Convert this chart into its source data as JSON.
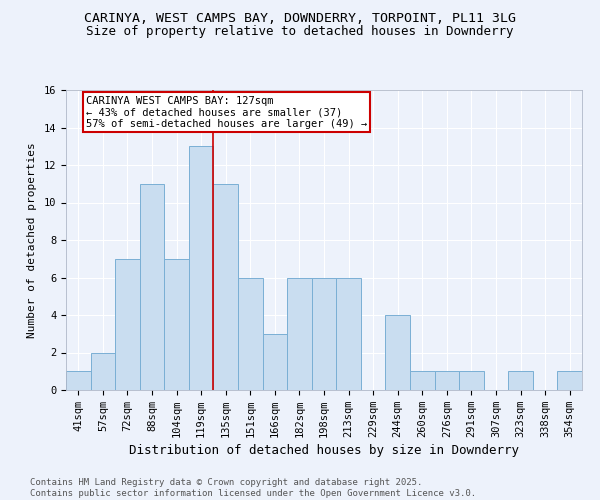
{
  "title": "CARINYA, WEST CAMPS BAY, DOWNDERRY, TORPOINT, PL11 3LG",
  "subtitle": "Size of property relative to detached houses in Downderry",
  "xlabel": "Distribution of detached houses by size in Downderry",
  "ylabel": "Number of detached properties",
  "categories": [
    "41sqm",
    "57sqm",
    "72sqm",
    "88sqm",
    "104sqm",
    "119sqm",
    "135sqm",
    "151sqm",
    "166sqm",
    "182sqm",
    "198sqm",
    "213sqm",
    "229sqm",
    "244sqm",
    "260sqm",
    "276sqm",
    "291sqm",
    "307sqm",
    "323sqm",
    "338sqm",
    "354sqm"
  ],
  "values": [
    1,
    2,
    7,
    11,
    7,
    13,
    11,
    6,
    3,
    6,
    6,
    6,
    0,
    4,
    1,
    1,
    1,
    0,
    1,
    0,
    1
  ],
  "bar_color": "#c9ddf0",
  "bar_edge_color": "#7aafd4",
  "vline_x_index": 5.5,
  "vline_color": "#cc0000",
  "annotation_title": "CARINYA WEST CAMPS BAY: 127sqm",
  "annotation_line1": "← 43% of detached houses are smaller (37)",
  "annotation_line2": "57% of semi-detached houses are larger (49) →",
  "annotation_box_color": "#ffffff",
  "annotation_box_edge": "#cc0000",
  "ylim": [
    0,
    16
  ],
  "yticks": [
    0,
    2,
    4,
    6,
    8,
    10,
    12,
    14,
    16
  ],
  "footnote1": "Contains HM Land Registry data © Crown copyright and database right 2025.",
  "footnote2": "Contains public sector information licensed under the Open Government Licence v3.0.",
  "background_color": "#edf2fb",
  "title_fontsize": 9.5,
  "subtitle_fontsize": 9,
  "xlabel_fontsize": 9,
  "ylabel_fontsize": 8,
  "tick_fontsize": 7.5,
  "annotation_fontsize": 7.5,
  "footnote_fontsize": 6.5
}
